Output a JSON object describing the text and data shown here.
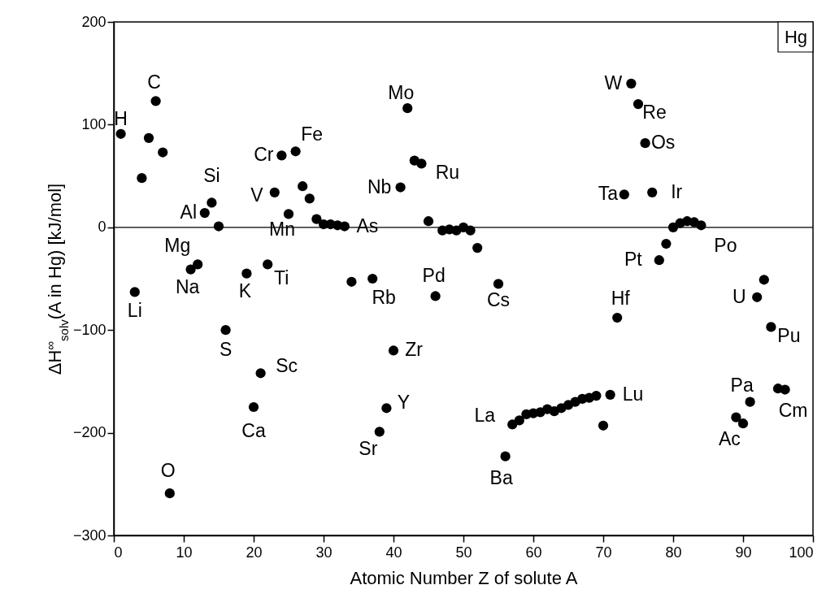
{
  "chart_data": {
    "type": "scatter",
    "xlabel": "Atomic Number Z of solute A",
    "ylabel": "ΔH$^{∞}$$_{solv}$(A in Hg) [kJ/mol]",
    "xlim": [
      0,
      100
    ],
    "xticks": [
      0,
      10,
      20,
      30,
      40,
      50,
      60,
      70,
      80,
      90,
      100
    ],
    "ylim": [
      -300,
      200
    ],
    "yticks": [
      -300,
      -200,
      -100,
      0,
      100,
      200
    ],
    "grid": false,
    "marker": "circle",
    "ref_lines": [
      {
        "axis": "y",
        "value": 0,
        "color": "#000000"
      }
    ],
    "series": [
      {
        "color": "#000000",
        "x": [
          1,
          3,
          4,
          5,
          6,
          7,
          8,
          11,
          12,
          13,
          14,
          15,
          16,
          19,
          20,
          21,
          22,
          23,
          24,
          25,
          26,
          27,
          28,
          29,
          30,
          31,
          32,
          33,
          34,
          37,
          38,
          39,
          40,
          41,
          42,
          43,
          44,
          45,
          46,
          47,
          48,
          49,
          50,
          51,
          52,
          55,
          56,
          57,
          58,
          59,
          60,
          61,
          62,
          63,
          64,
          65,
          66,
          67,
          68,
          69,
          70,
          71,
          72,
          73,
          74,
          75,
          76,
          77,
          78,
          79,
          80,
          81,
          82,
          83,
          84,
          89,
          90,
          91,
          92,
          93,
          94,
          95,
          96
        ],
        "values": [
          91,
          -63,
          48,
          87,
          123,
          73,
          -259,
          -41,
          -36,
          14,
          24,
          1,
          -100,
          -45,
          -175,
          -142,
          -36,
          34,
          70,
          13,
          74,
          40,
          28,
          8,
          3,
          3,
          2,
          1,
          -53,
          -50,
          -199,
          -176,
          -120,
          39,
          116,
          65,
          62,
          6,
          -67,
          -3,
          -2,
          -3,
          0,
          -3,
          -20,
          -55,
          -223,
          -192,
          -188,
          -182,
          -181,
          -180,
          -177,
          -179,
          -176,
          -173,
          -170,
          -167,
          -166,
          -164,
          -193,
          -163,
          -88,
          32,
          140,
          120,
          82,
          34,
          -32,
          -16,
          0,
          4,
          6,
          5,
          2,
          -185,
          -191,
          -170,
          -68,
          -51,
          -97,
          -157,
          -158
        ]
      }
    ],
    "annotations": [
      {
        "text": "H",
        "x": 1,
        "y": 91
      },
      {
        "text": "C",
        "x": 6,
        "y": 123
      },
      {
        "text": "Li",
        "x": 3,
        "y": -63
      },
      {
        "text": "Si",
        "x": 14,
        "y": 24
      },
      {
        "text": "Al",
        "x": 13,
        "y": 14
      },
      {
        "text": "Mg",
        "x": 12,
        "y": -36
      },
      {
        "text": "Na",
        "x": 11,
        "y": -41
      },
      {
        "text": "K",
        "x": 19,
        "y": -45
      },
      {
        "text": "Ti",
        "x": 22,
        "y": -36
      },
      {
        "text": "S",
        "x": 16,
        "y": -100
      },
      {
        "text": "Sc",
        "x": 21,
        "y": -142
      },
      {
        "text": "Ca",
        "x": 20,
        "y": -175
      },
      {
        "text": "O",
        "x": 8,
        "y": -259
      },
      {
        "text": "Cr",
        "x": 24,
        "y": 70
      },
      {
        "text": "Fe",
        "x": 26,
        "y": 74
      },
      {
        "text": "V",
        "x": 23,
        "y": 34
      },
      {
        "text": "Mn",
        "x": 25,
        "y": 13
      },
      {
        "text": "As",
        "x": 33,
        "y": 1
      },
      {
        "text": "Mo",
        "x": 42,
        "y": 116
      },
      {
        "text": "Nb",
        "x": 41,
        "y": 39
      },
      {
        "text": "Ru",
        "x": 44,
        "y": 62
      },
      {
        "text": "Rb",
        "x": 37,
        "y": -50
      },
      {
        "text": "Pd",
        "x": 46,
        "y": -67
      },
      {
        "text": "Cs",
        "x": 55,
        "y": -55
      },
      {
        "text": "Zr",
        "x": 40,
        "y": -120
      },
      {
        "text": "Y",
        "x": 39,
        "y": -176
      },
      {
        "text": "Sr",
        "x": 38,
        "y": -199
      },
      {
        "text": "La",
        "x": 57,
        "y": -192
      },
      {
        "text": "Ba",
        "x": 56,
        "y": -223
      },
      {
        "text": "Lu",
        "x": 71,
        "y": -163
      },
      {
        "text": "Hf",
        "x": 72,
        "y": -88
      },
      {
        "text": "W",
        "x": 74,
        "y": 140
      },
      {
        "text": "Re",
        "x": 75,
        "y": 120
      },
      {
        "text": "Os",
        "x": 76,
        "y": 82
      },
      {
        "text": "Ta",
        "x": 73,
        "y": 32
      },
      {
        "text": "Ir",
        "x": 77,
        "y": 34
      },
      {
        "text": "Pt",
        "x": 78,
        "y": -32
      },
      {
        "text": "Po",
        "x": 84,
        "y": 2
      },
      {
        "text": "U",
        "x": 92,
        "y": -68
      },
      {
        "text": "Pu",
        "x": 94,
        "y": -97
      },
      {
        "text": "Pa",
        "x": 91,
        "y": -170
      },
      {
        "text": "Cm",
        "x": 96,
        "y": -158
      },
      {
        "text": "Ac",
        "x": 89,
        "y": -185
      },
      "Hg"
    ]
  }
}
